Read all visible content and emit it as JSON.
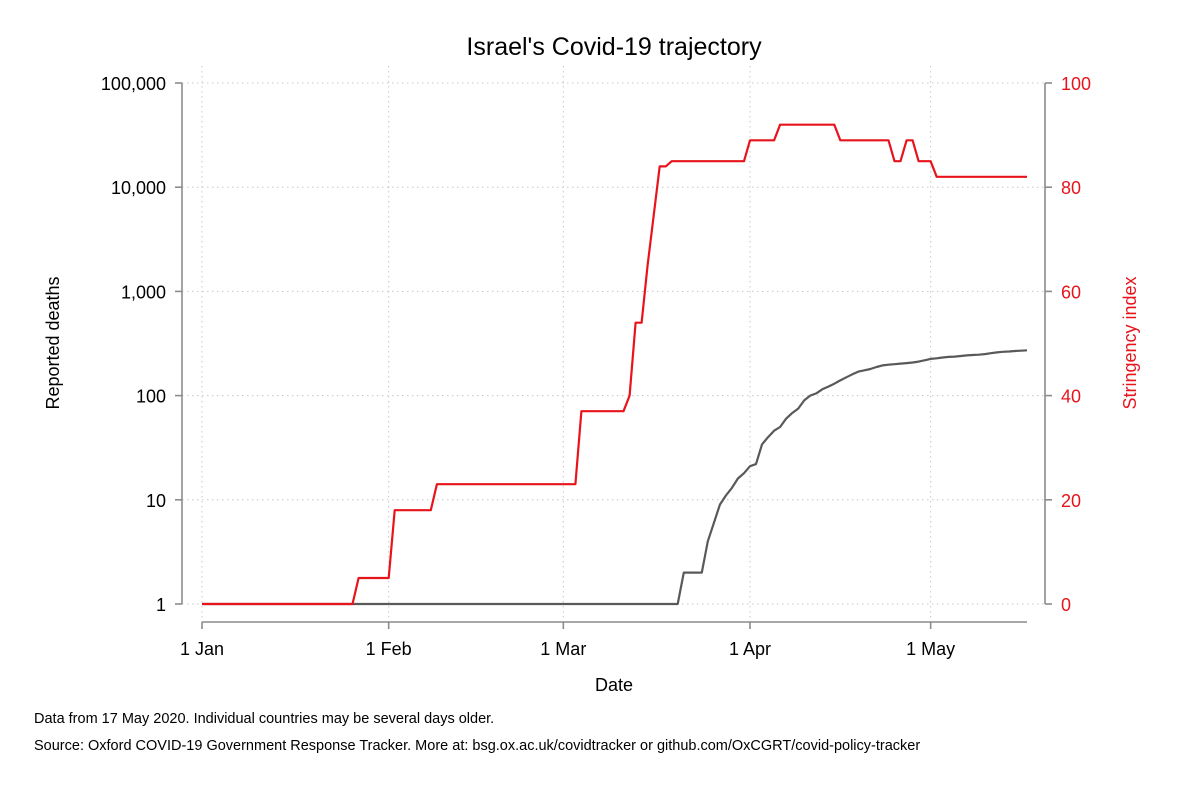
{
  "chart_data": {
    "type": "line",
    "title": "Israel's Covid-19 trajectory",
    "xlabel": "Date",
    "ylabel_left": "Reported deaths",
    "ylabel_right": "Stringency index",
    "x_ticks": [
      {
        "date": "2020-01-01",
        "label": "1 Jan"
      },
      {
        "date": "2020-02-01",
        "label": "1 Feb"
      },
      {
        "date": "2020-03-01",
        "label": "1 Mar"
      },
      {
        "date": "2020-04-01",
        "label": "1 Apr"
      },
      {
        "date": "2020-05-01",
        "label": "1 May"
      }
    ],
    "xlim": [
      "2020-01-01",
      "2020-05-17"
    ],
    "y_left": {
      "scale": "log",
      "lim": [
        1,
        100000
      ],
      "ticks": [
        {
          "value": 1,
          "label": "1"
        },
        {
          "value": 10,
          "label": "10"
        },
        {
          "value": 100,
          "label": "100"
        },
        {
          "value": 1000,
          "label": "1,000"
        },
        {
          "value": 10000,
          "label": "10,000"
        },
        {
          "value": 100000,
          "label": "100,000"
        }
      ]
    },
    "y_right": {
      "scale": "linear",
      "lim": [
        0,
        100
      ],
      "ticks": [
        {
          "value": 0,
          "label": "0"
        },
        {
          "value": 20,
          "label": "20"
        },
        {
          "value": 40,
          "label": "40"
        },
        {
          "value": 60,
          "label": "60"
        },
        {
          "value": 80,
          "label": "80"
        },
        {
          "value": 100,
          "label": "100"
        }
      ]
    },
    "grid": true,
    "series": [
      {
        "axis": "left",
        "color": "#595959",
        "points": [
          [
            "2020-01-01",
            1
          ],
          [
            "2020-03-20",
            1
          ],
          [
            "2020-03-21",
            2
          ],
          [
            "2020-03-24",
            2
          ],
          [
            "2020-03-25",
            4
          ],
          [
            "2020-03-26",
            6
          ],
          [
            "2020-03-27",
            9
          ],
          [
            "2020-03-28",
            11
          ],
          [
            "2020-03-29",
            13
          ],
          [
            "2020-03-30",
            16
          ],
          [
            "2020-03-31",
            18
          ],
          [
            "2020-04-01",
            21
          ],
          [
            "2020-04-02",
            22
          ],
          [
            "2020-04-03",
            34
          ],
          [
            "2020-04-04",
            40
          ],
          [
            "2020-04-05",
            46
          ],
          [
            "2020-04-06",
            50
          ],
          [
            "2020-04-07",
            60
          ],
          [
            "2020-04-08",
            68
          ],
          [
            "2020-04-09",
            75
          ],
          [
            "2020-04-10",
            90
          ],
          [
            "2020-04-11",
            100
          ],
          [
            "2020-04-12",
            105
          ],
          [
            "2020-04-13",
            115
          ],
          [
            "2020-04-14",
            122
          ],
          [
            "2020-04-15",
            130
          ],
          [
            "2020-04-16",
            140
          ],
          [
            "2020-04-17",
            150
          ],
          [
            "2020-04-18",
            160
          ],
          [
            "2020-04-19",
            170
          ],
          [
            "2020-04-20",
            175
          ],
          [
            "2020-04-21",
            180
          ],
          [
            "2020-04-22",
            188
          ],
          [
            "2020-04-23",
            195
          ],
          [
            "2020-04-24",
            198
          ],
          [
            "2020-04-25",
            200
          ],
          [
            "2020-04-26",
            203
          ],
          [
            "2020-04-27",
            205
          ],
          [
            "2020-04-28",
            208
          ],
          [
            "2020-04-29",
            212
          ],
          [
            "2020-04-30",
            218
          ],
          [
            "2020-05-01",
            225
          ],
          [
            "2020-05-02",
            228
          ],
          [
            "2020-05-03",
            232
          ],
          [
            "2020-05-04",
            235
          ],
          [
            "2020-05-05",
            237
          ],
          [
            "2020-05-06",
            240
          ],
          [
            "2020-05-07",
            243
          ],
          [
            "2020-05-08",
            245
          ],
          [
            "2020-05-09",
            247
          ],
          [
            "2020-05-10",
            250
          ],
          [
            "2020-05-11",
            255
          ],
          [
            "2020-05-12",
            260
          ],
          [
            "2020-05-13",
            263
          ],
          [
            "2020-05-14",
            265
          ],
          [
            "2020-05-15",
            268
          ],
          [
            "2020-05-16",
            270
          ],
          [
            "2020-05-17",
            272
          ]
        ]
      },
      {
        "axis": "right",
        "color": "#e8141c",
        "points": [
          [
            "2020-01-01",
            0
          ],
          [
            "2020-01-26",
            0
          ],
          [
            "2020-01-27",
            5
          ],
          [
            "2020-02-01",
            5
          ],
          [
            "2020-02-02",
            18
          ],
          [
            "2020-02-08",
            18
          ],
          [
            "2020-02-09",
            23
          ],
          [
            "2020-03-03",
            23
          ],
          [
            "2020-03-04",
            37
          ],
          [
            "2020-03-11",
            37
          ],
          [
            "2020-03-12",
            40
          ],
          [
            "2020-03-13",
            54
          ],
          [
            "2020-03-14",
            54
          ],
          [
            "2020-03-15",
            65
          ],
          [
            "2020-03-17",
            84
          ],
          [
            "2020-03-18",
            84
          ],
          [
            "2020-03-19",
            85
          ],
          [
            "2020-03-31",
            85
          ],
          [
            "2020-04-01",
            89
          ],
          [
            "2020-04-05",
            89
          ],
          [
            "2020-04-06",
            92
          ],
          [
            "2020-04-15",
            92
          ],
          [
            "2020-04-16",
            89
          ],
          [
            "2020-04-24",
            89
          ],
          [
            "2020-04-25",
            85
          ],
          [
            "2020-04-26",
            85
          ],
          [
            "2020-04-27",
            89
          ],
          [
            "2020-04-28",
            89
          ],
          [
            "2020-04-29",
            85
          ],
          [
            "2020-05-01",
            85
          ],
          [
            "2020-05-02",
            82
          ],
          [
            "2020-05-17",
            82
          ]
        ]
      }
    ]
  },
  "notes": {
    "line1": "Data from 17 May 2020. Individual countries may be several days older.",
    "line2": "Source: Oxford COVID-19 Government Response Tracker. More at: bsg.ox.ac.uk/covidtracker or github.com/OxCGRT/covid-policy-tracker"
  }
}
